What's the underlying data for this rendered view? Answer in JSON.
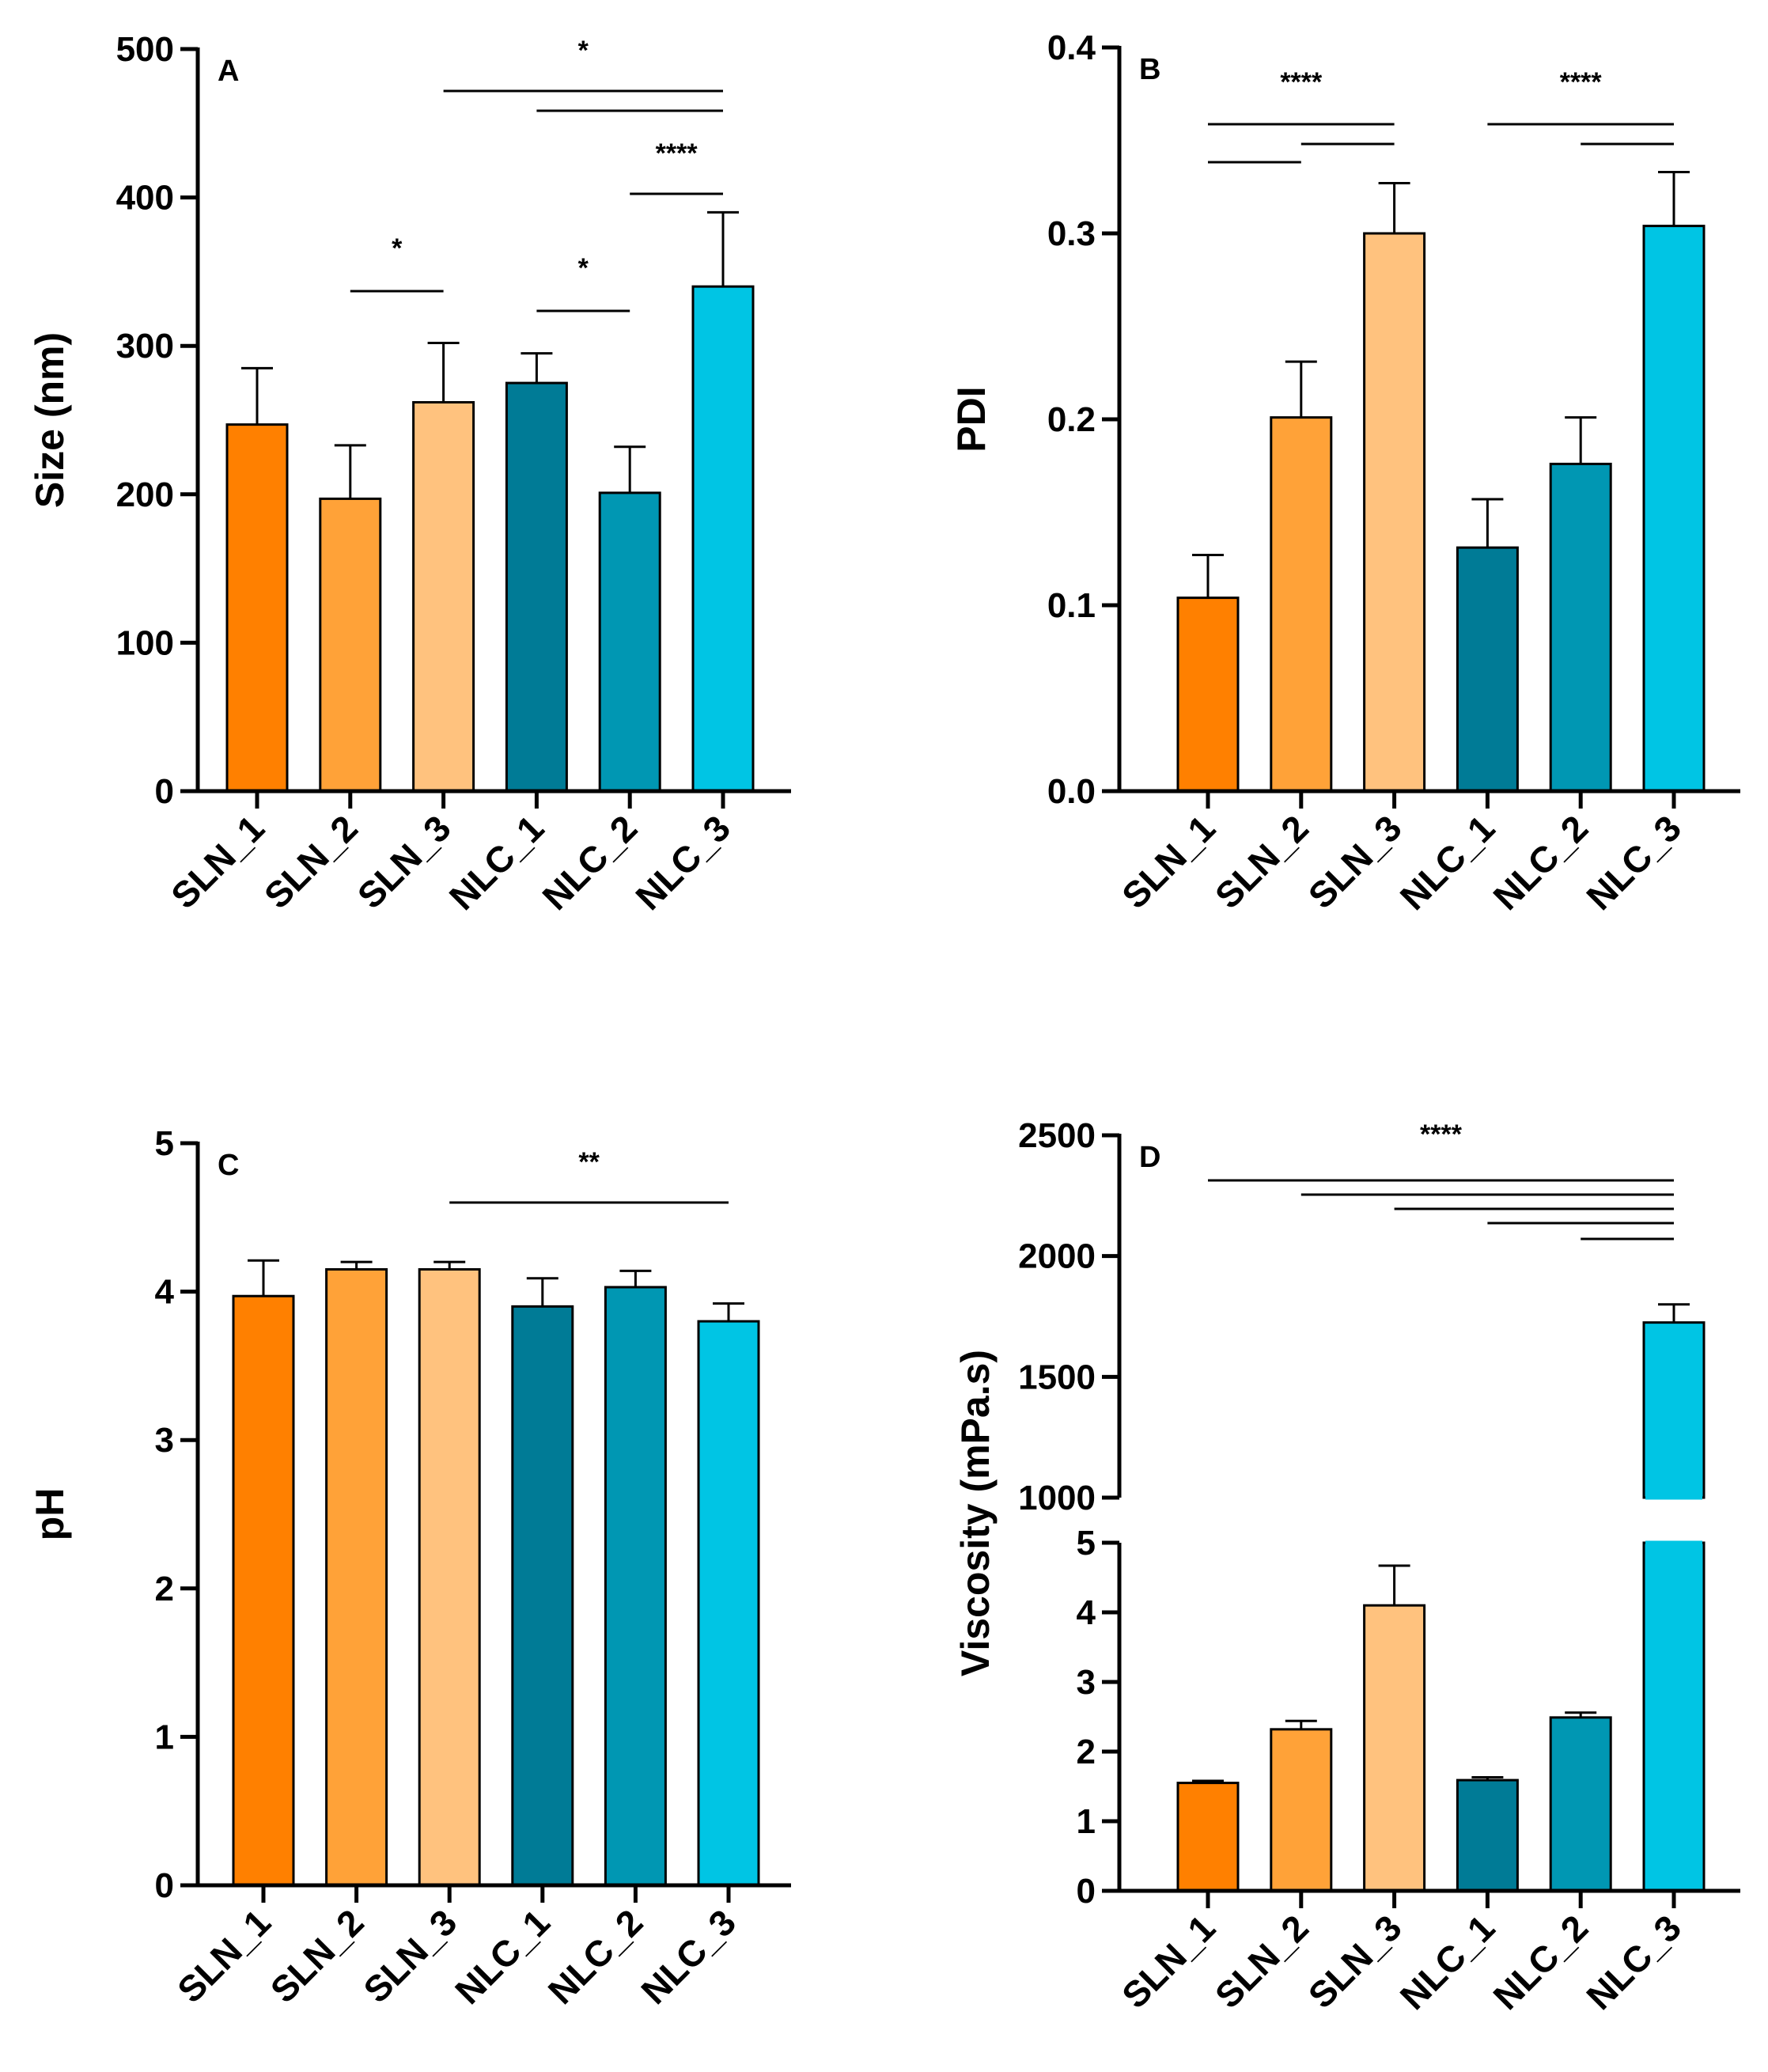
{
  "chart_data": [
    {
      "panel": "A",
      "type": "bar",
      "categories": [
        "SLN_1",
        "SLN_2",
        "SLN_3",
        "NLC_1",
        "NLC_2",
        "NLC_3"
      ],
      "values": [
        247,
        197,
        262,
        275,
        201,
        340
      ],
      "errors": [
        38,
        36,
        40,
        20,
        31,
        50
      ],
      "ylabel": "Size (nm)",
      "ylim": [
        0,
        500
      ],
      "yticks": [
        "0",
        "100",
        "200",
        "300",
        "400",
        "500"
      ],
      "significance": [
        {
          "label": "*",
          "pairs": [
            [
              2,
              5
            ],
            [
              3,
              5
            ]
          ]
        },
        {
          "label": "****",
          "pairs": [
            [
              4,
              5
            ]
          ]
        },
        {
          "label": "*",
          "pairs": [
            [
              1,
              2
            ]
          ]
        },
        {
          "label": "*",
          "pairs": [
            [
              3,
              4
            ]
          ]
        }
      ]
    },
    {
      "panel": "B",
      "type": "bar",
      "categories": [
        "SLN_1",
        "SLN_2",
        "SLN_3",
        "NLC_1",
        "NLC_2",
        "NLC_3"
      ],
      "values": [
        0.104,
        0.201,
        0.3,
        0.131,
        0.176,
        0.304
      ],
      "errors": [
        0.023,
        0.03,
        0.027,
        0.026,
        0.025,
        0.029
      ],
      "ylabel": "PDI",
      "ylim": [
        0,
        0.4
      ],
      "yticks": [
        "0.0",
        "0.1",
        "0.2",
        "0.3",
        "0.4"
      ],
      "significance": [
        {
          "label": "****",
          "pairs": [
            [
              0,
              2
            ],
            [
              1,
              2
            ],
            [
              0,
              1
            ]
          ]
        },
        {
          "label": "****",
          "pairs": [
            [
              3,
              5
            ],
            [
              4,
              5
            ]
          ]
        }
      ]
    },
    {
      "panel": "C",
      "type": "bar",
      "categories": [
        "SLN_1",
        "SLN_2",
        "SLN_3",
        "NLC_1",
        "NLC_2",
        "NLC_3"
      ],
      "values": [
        3.97,
        4.15,
        4.15,
        3.9,
        4.03,
        3.8
      ],
      "errors": [
        0.24,
        0.05,
        0.05,
        0.19,
        0.11,
        0.12
      ],
      "ylabel": "pH",
      "ylim": [
        0,
        5
      ],
      "yticks": [
        "0",
        "1",
        "2",
        "3",
        "4",
        "5"
      ],
      "significance": [
        {
          "label": "**",
          "pairs": [
            [
              2,
              5
            ]
          ]
        }
      ]
    },
    {
      "panel": "D",
      "type": "bar",
      "broken_axis": true,
      "categories": [
        "SLN_1",
        "SLN_2",
        "SLN_3",
        "NLC_1",
        "NLC_2",
        "NLC_3"
      ],
      "values": [
        1.55,
        2.32,
        4.1,
        1.59,
        2.49,
        1725
      ],
      "errors": [
        0.03,
        0.12,
        0.57,
        0.04,
        0.07,
        75
      ],
      "ylabel": "Viscosity (mPa.s)",
      "ylim_lower": [
        0,
        5
      ],
      "ylim_upper": [
        1000,
        2500
      ],
      "yticks_lower": [
        "0",
        "1",
        "2",
        "3",
        "4",
        "5"
      ],
      "yticks_upper": [
        "1000",
        "1500",
        "2000",
        "2500"
      ],
      "significance": [
        {
          "label": "****",
          "pairs": [
            [
              0,
              5
            ],
            [
              1,
              5
            ],
            [
              2,
              5
            ],
            [
              3,
              5
            ],
            [
              4,
              5
            ]
          ]
        }
      ]
    }
  ],
  "colors": [
    "#FF8000",
    "#FFA238",
    "#FFC27E",
    "#007B96",
    "#0097B3",
    "#00C5E4"
  ]
}
